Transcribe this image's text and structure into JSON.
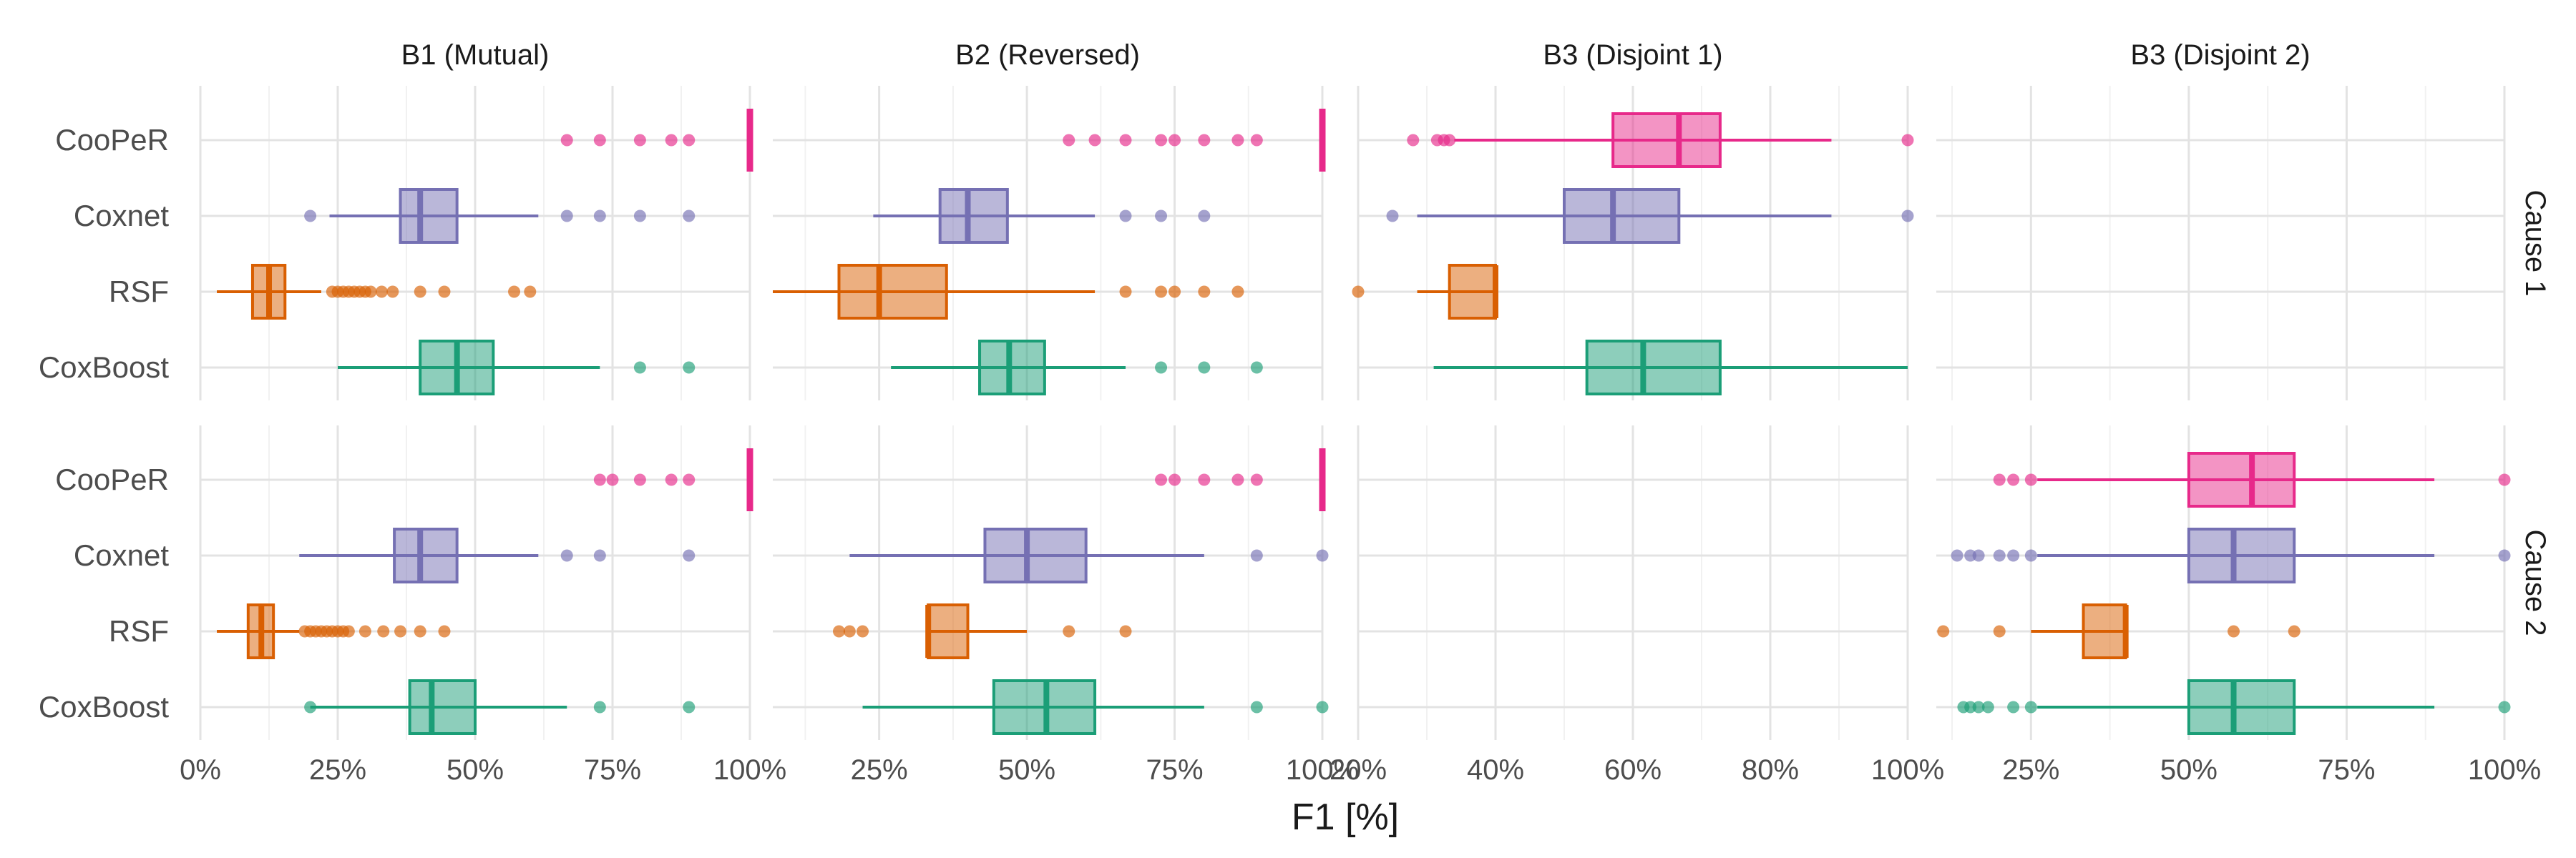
{
  "chart_data": {
    "type": "boxplot",
    "xlabel": "F1 [%]",
    "ylabel": "",
    "categories": [
      "CooPeR",
      "Coxnet",
      "RSF",
      "CoxBoost"
    ],
    "colors": {
      "CooPeR": "#e7298a",
      "Coxnet": "#7570b3",
      "RSF": "#d95f02",
      "CoxBoost": "#1b9e77"
    },
    "column_facets": [
      "B1 (Mutual)",
      "B2 (Reversed)",
      "B3 (Disjoint 1)",
      "B3 (Disjoint 2)"
    ],
    "row_facets": [
      "Cause 1",
      "Cause 2"
    ],
    "columns": [
      {
        "title": "B1 (Mutual)",
        "xlim": [
          0,
          100
        ],
        "ticks": [
          0,
          25,
          50,
          75,
          100
        ],
        "tick_labels": [
          "0%",
          "25%",
          "50%",
          "75%",
          "100%"
        ],
        "minor_ticks": [
          12.5,
          37.5,
          62.5,
          87.5
        ]
      },
      {
        "title": "B2 (Reversed)",
        "xlim": [
          7,
          100
        ],
        "ticks": [
          25,
          50,
          75,
          100
        ],
        "tick_labels": [
          "25%",
          "50%",
          "75%",
          "100%"
        ],
        "minor_ticks": [
          12.5,
          37.5,
          62.5,
          87.5
        ]
      },
      {
        "title": "B3 (Disjoint 1)",
        "xlim": [
          20,
          100
        ],
        "ticks": [
          20,
          40,
          60,
          80,
          100
        ],
        "tick_labels": [
          "20%",
          "40%",
          "60%",
          "80%",
          "100%"
        ],
        "minor_ticks": [
          30,
          50,
          70,
          90
        ]
      },
      {
        "title": "B3 (Disjoint 2)",
        "xlim": [
          10,
          100
        ],
        "ticks": [
          25,
          50,
          75,
          100
        ],
        "tick_labels": [
          "25%",
          "50%",
          "75%",
          "100%"
        ],
        "minor_ticks": [
          12.5,
          37.5,
          62.5,
          87.5
        ]
      }
    ],
    "panels": [
      {
        "row": 0,
        "col": 0,
        "boxes": [
          {
            "method": "CooPeR",
            "q1": 100,
            "median": 100,
            "q3": 100,
            "wlo": 100,
            "whi": 100,
            "outliers": [
              66.7,
              72.7,
              80,
              85.7,
              88.9
            ]
          },
          {
            "method": "Coxnet",
            "q1": 36.4,
            "median": 40,
            "q3": 46.7,
            "wlo": 23.5,
            "whi": 61.5,
            "outliers": [
              20,
              66.7,
              72.7,
              80,
              88.9
            ]
          },
          {
            "method": "RSF",
            "q1": 9.5,
            "median": 12.5,
            "q3": 15.4,
            "wlo": 3,
            "whi": 22,
            "outliers": [
              24,
              25,
              26,
              27,
              28,
              29,
              30,
              31,
              33,
              35,
              40,
              44.4,
              57.1,
              60
            ]
          },
          {
            "method": "CoxBoost",
            "q1": 40,
            "median": 46.7,
            "q3": 53.3,
            "wlo": 25,
            "whi": 72.7,
            "outliers": [
              80,
              88.9
            ]
          }
        ]
      },
      {
        "row": 0,
        "col": 1,
        "boxes": [
          {
            "method": "CooPeR",
            "q1": 100,
            "median": 100,
            "q3": 100,
            "wlo": 100,
            "whi": 100,
            "outliers": [
              57.1,
              61.5,
              66.7,
              72.7,
              75,
              80,
              85.7,
              88.9
            ]
          },
          {
            "method": "Coxnet",
            "q1": 35.3,
            "median": 40,
            "q3": 46.7,
            "wlo": 24,
            "whi": 61.5,
            "outliers": [
              66.7,
              72.7,
              80
            ]
          },
          {
            "method": "RSF",
            "q1": 18.2,
            "median": 25,
            "q3": 36.4,
            "wlo": 7,
            "whi": 61.5,
            "outliers": [
              66.7,
              72.7,
              75,
              80,
              85.7
            ]
          },
          {
            "method": "CoxBoost",
            "q1": 42,
            "median": 47,
            "q3": 53,
            "wlo": 27,
            "whi": 66.7,
            "outliers": [
              72.7,
              80,
              88.9
            ]
          }
        ]
      },
      {
        "row": 0,
        "col": 2,
        "boxes": [
          {
            "method": "CooPeR",
            "q1": 57.1,
            "median": 66.7,
            "q3": 72.7,
            "wlo": 34,
            "whi": 88.9,
            "outliers": [
              28,
              31.5,
              32.5,
              33.3,
              100
            ]
          },
          {
            "method": "Coxnet",
            "q1": 50,
            "median": 57.1,
            "q3": 66.7,
            "wlo": 28.6,
            "whi": 88.9,
            "outliers": [
              25,
              100
            ]
          },
          {
            "method": "RSF",
            "q1": 33.3,
            "median": 40,
            "q3": 40,
            "wlo": 28.6,
            "whi": 40,
            "outliers": [
              20
            ]
          },
          {
            "method": "CoxBoost",
            "q1": 53.3,
            "median": 61.5,
            "q3": 72.7,
            "wlo": 31,
            "whi": 100,
            "outliers": []
          }
        ]
      },
      {
        "row": 0,
        "col": 3,
        "boxes": []
      },
      {
        "row": 1,
        "col": 0,
        "boxes": [
          {
            "method": "CooPeR",
            "q1": 100,
            "median": 100,
            "q3": 100,
            "wlo": 100,
            "whi": 100,
            "outliers": [
              72.7,
              75,
              80,
              85.7,
              88.9
            ]
          },
          {
            "method": "Coxnet",
            "q1": 35.3,
            "median": 40,
            "q3": 46.7,
            "wlo": 18,
            "whi": 61.5,
            "outliers": [
              66.7,
              72.7,
              88.9
            ]
          },
          {
            "method": "RSF",
            "q1": 8.7,
            "median": 11.1,
            "q3": 13.3,
            "wlo": 3,
            "whi": 18,
            "outliers": [
              19,
              20,
              21,
              22,
              23,
              24,
              25,
              26,
              27,
              30,
              33.3,
              36.4,
              40,
              44.4
            ]
          },
          {
            "method": "CoxBoost",
            "q1": 38.1,
            "median": 42.1,
            "q3": 50,
            "wlo": 20,
            "whi": 66.7,
            "outliers": [
              20,
              72.7,
              88.9
            ]
          }
        ]
      },
      {
        "row": 1,
        "col": 1,
        "boxes": [
          {
            "method": "CooPeR",
            "q1": 100,
            "median": 100,
            "q3": 100,
            "wlo": 100,
            "whi": 100,
            "outliers": [
              72.7,
              75,
              80,
              85.7,
              88.9
            ]
          },
          {
            "method": "Coxnet",
            "q1": 42.9,
            "median": 50,
            "q3": 60,
            "wlo": 20,
            "whi": 80,
            "outliers": [
              88.9,
              100
            ]
          },
          {
            "method": "RSF",
            "q1": 33.3,
            "median": 33.3,
            "q3": 40,
            "wlo": 33.3,
            "whi": 50,
            "outliers": [
              18.2,
              20,
              22.2,
              57.1,
              66.7
            ]
          },
          {
            "method": "CoxBoost",
            "q1": 44.4,
            "median": 53.3,
            "q3": 61.5,
            "wlo": 22.2,
            "whi": 80,
            "outliers": [
              88.9,
              100
            ]
          }
        ]
      },
      {
        "row": 1,
        "col": 2,
        "boxes": []
      },
      {
        "row": 1,
        "col": 3,
        "boxes": [
          {
            "method": "CooPeR",
            "q1": 50,
            "median": 60,
            "q3": 66.7,
            "wlo": 26,
            "whi": 88.9,
            "outliers": [
              20,
              22.2,
              25,
              100
            ]
          },
          {
            "method": "Coxnet",
            "q1": 50,
            "median": 57.1,
            "q3": 66.7,
            "wlo": 26,
            "whi": 88.9,
            "outliers": [
              13.3,
              15.4,
              16.7,
              20,
              22.2,
              25,
              100
            ]
          },
          {
            "method": "RSF",
            "q1": 33.3,
            "median": 40,
            "q3": 40,
            "wlo": 25,
            "whi": 40,
            "outliers": [
              11.1,
              20,
              57.1,
              66.7
            ]
          },
          {
            "method": "CoxBoost",
            "q1": 50,
            "median": 57.1,
            "q3": 66.7,
            "wlo": 26,
            "whi": 88.9,
            "outliers": [
              14.3,
              15.4,
              16.7,
              18.2,
              22.2,
              25,
              100
            ]
          }
        ]
      }
    ]
  }
}
